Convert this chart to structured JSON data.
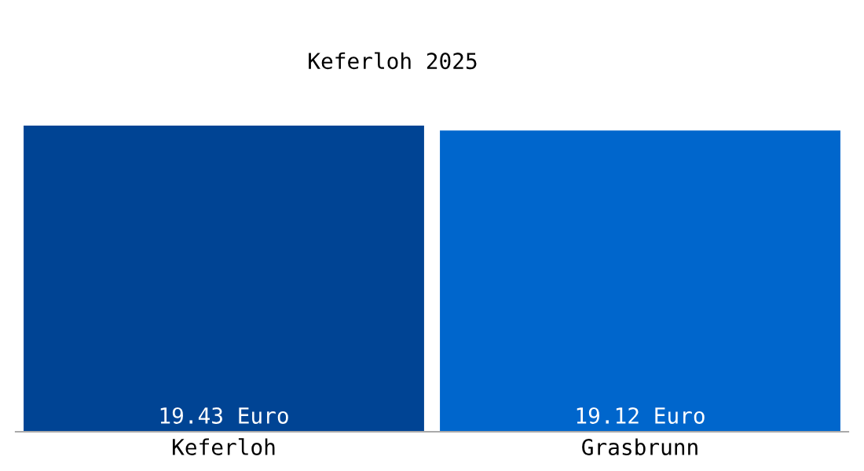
{
  "chart_data": {
    "type": "bar",
    "title": "Keferloh 2025",
    "categories": [
      "Keferloh",
      "Grasbrunn"
    ],
    "values": [
      19.43,
      19.12
    ],
    "colors": [
      "#004494",
      "#0066cc"
    ],
    "value_labels": [
      "19.43 Euro",
      "19.12 Euro"
    ],
    "grid": false,
    "legend": false
  }
}
